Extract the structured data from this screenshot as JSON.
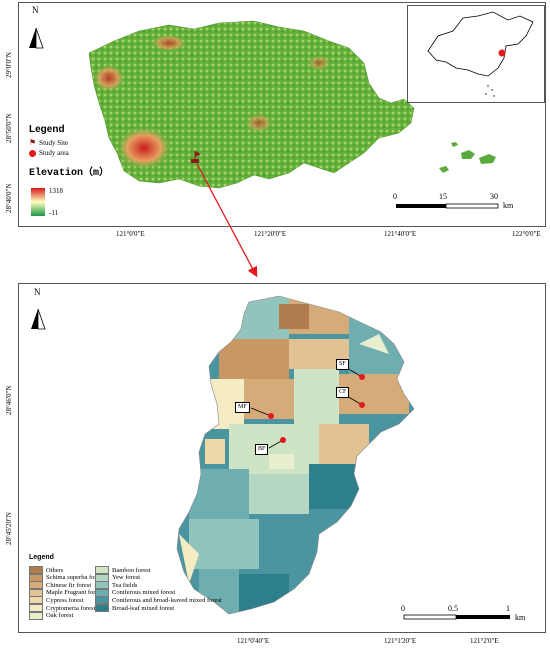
{
  "top_map": {
    "north": "N",
    "legend": {
      "title": "Legend",
      "site_label": "Study Site",
      "area_label": "Study area",
      "elevation_title": "Elevation（m）",
      "elev_max": "1318",
      "elev_min": "-11",
      "elev_colors": {
        "high": "#d7191c",
        "mid": "#ffffbf",
        "low": "#1a9641"
      }
    },
    "scale": {
      "s0": "0",
      "s1": "15",
      "s2": "30",
      "unit": "km"
    },
    "x_ticks": [
      "121°0'0\"E",
      "121°20'0\"E",
      "121°40'0\"E",
      "122°0'0\"E"
    ],
    "y_ticks": [
      "29°0'0\"N",
      "28°50'0\"N",
      "28°40'0\"N"
    ]
  },
  "bottom_map": {
    "north": "N",
    "legend_title": "Legend",
    "legend_left": [
      {
        "label": "Others",
        "color": "#b07c4e"
      },
      {
        "label": "Schima superba forest",
        "color": "#c99764"
      },
      {
        "label": "Chinese fir forest",
        "color": "#d6ab7a"
      },
      {
        "label": "Maple Fragrant forest",
        "color": "#e2c293"
      },
      {
        "label": "Cypress forest",
        "color": "#edd9a8"
      },
      {
        "label": "Cryptomeria forest",
        "color": "#f6ecc3"
      },
      {
        "label": "Oak forest",
        "color": "#e8efce"
      }
    ],
    "legend_right": [
      {
        "label": "Bamboo forest",
        "color": "#cfe3c5"
      },
      {
        "label": "Yew forest",
        "color": "#b4d6c3"
      },
      {
        "label": "Tea fields",
        "color": "#93c4bc"
      },
      {
        "label": "Coniferous mixed forest",
        "color": "#6faeb0"
      },
      {
        "label": "Coniferous and broad-leaved mixed forest",
        "color": "#4a95a0"
      },
      {
        "label": "Broad-leaf mixed forest",
        "color": "#2e7f8c"
      }
    ],
    "sites": [
      {
        "label": "SF"
      },
      {
        "label": "CF"
      },
      {
        "label": "MF"
      },
      {
        "label": "BF"
      }
    ],
    "scale": {
      "s0": "0",
      "s1": "0.5",
      "s2": "1",
      "unit": "km"
    },
    "x_ticks": [
      "121°0'40\"E",
      "121°1'20\"E",
      "121°2'0\"E"
    ],
    "y_ticks": [
      "28°46'0\"N",
      "28°45'20\"N"
    ]
  },
  "colors": {
    "site_marker": "#e31a1c",
    "arrow": "#e31a1c"
  }
}
